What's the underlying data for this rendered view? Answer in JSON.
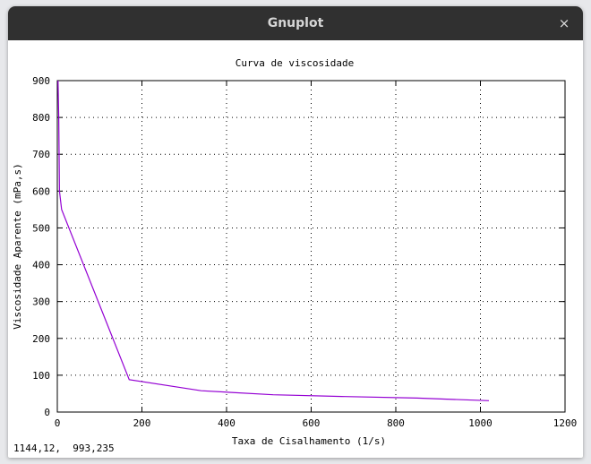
{
  "window": {
    "title": "Gnuplot",
    "close_glyph": "×"
  },
  "status_bar": {
    "coordinates": "1144,12,  993,235"
  },
  "chart_data": {
    "type": "line",
    "title": "Curva de viscosidade",
    "xlabel": "Taxa de Cisalhamento (1/s)",
    "ylabel": "Viscosidade Aparente (mPa,s)",
    "xlim": [
      0,
      1200
    ],
    "ylim": [
      0,
      900
    ],
    "xticks": [
      0,
      200,
      400,
      600,
      800,
      1000,
      1200
    ],
    "yticks": [
      0,
      100,
      200,
      300,
      400,
      500,
      600,
      700,
      800,
      900
    ],
    "grid": true,
    "series": [
      {
        "color": "#9400d3",
        "x": [
          1.7,
          3.4,
          5.1,
          10.2,
          170,
          340,
          510,
          680,
          850,
          1020
        ],
        "y": [
          900,
          800,
          600,
          550,
          88,
          58,
          47,
          42,
          38,
          31
        ]
      }
    ]
  }
}
